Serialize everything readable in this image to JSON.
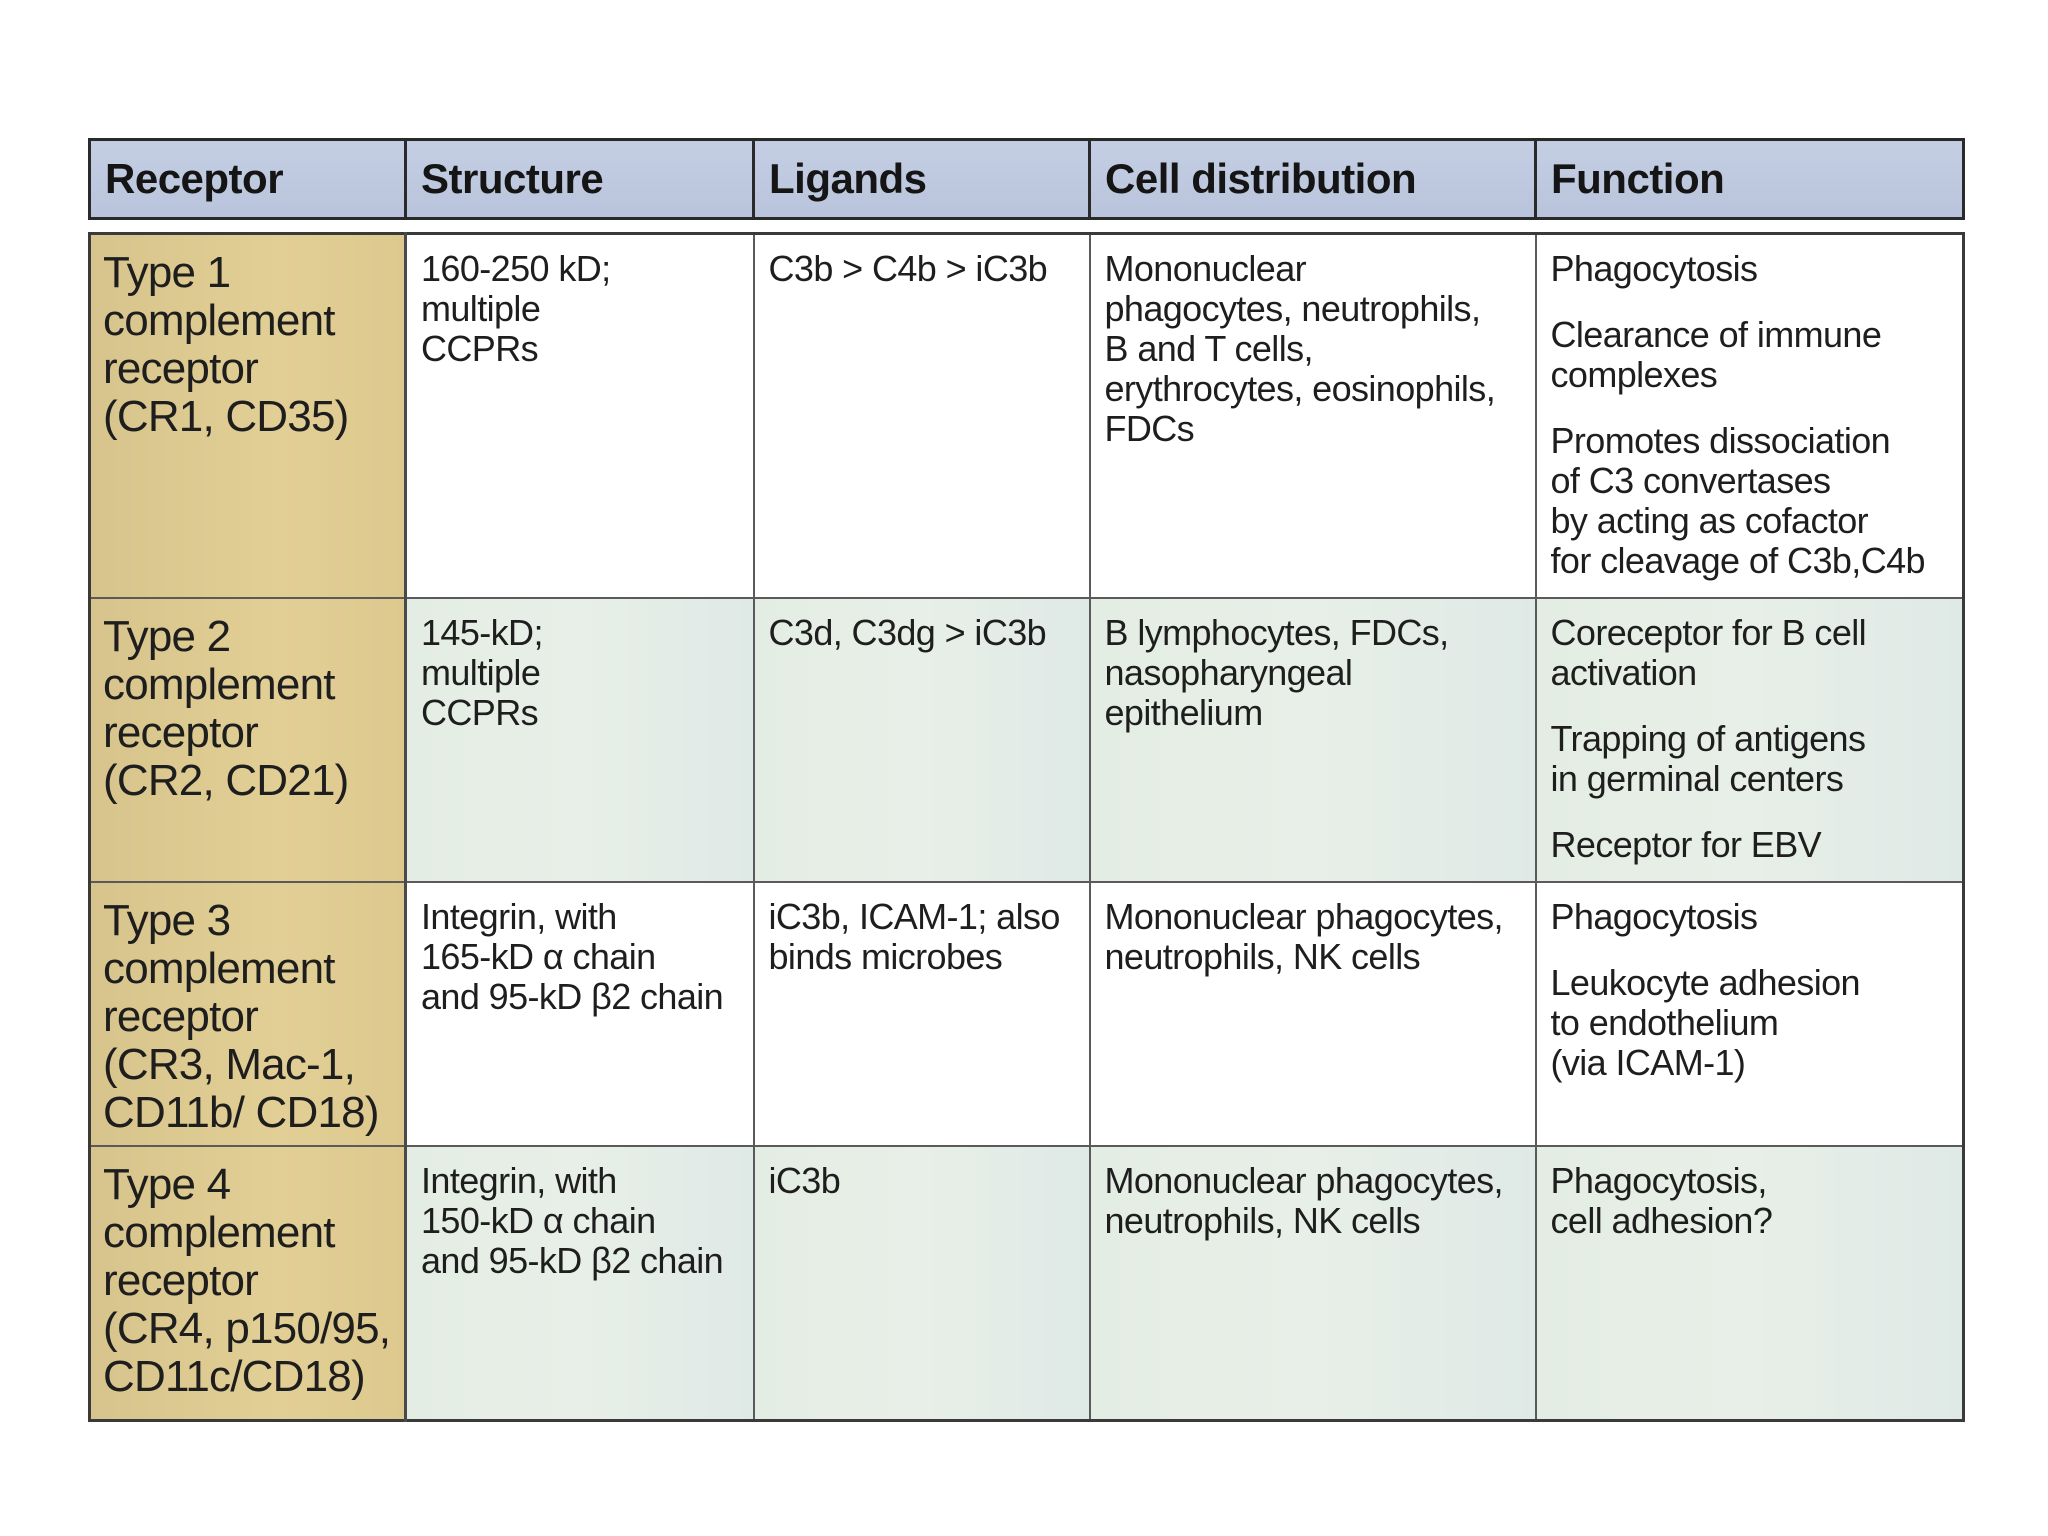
{
  "headers": [
    "Receptor",
    "Structure",
    "Ligands",
    "Cell distribution",
    "Function"
  ],
  "rows": [
    {
      "receptor": [
        "Type 1",
        "complement",
        "receptor",
        "(CR1, CD35)"
      ],
      "structure": [
        "160-250 kD;",
        "multiple",
        "CCPRs"
      ],
      "ligands": [
        "C3b > C4b > iC3b"
      ],
      "distribution": [
        "Mononuclear",
        "phagocytes, neutrophils,",
        "B and T cells,",
        "erythrocytes, eosinophils,",
        "FDCs"
      ],
      "function": [
        [
          "Phagocytosis"
        ],
        [
          "Clearance of immune",
          "complexes"
        ],
        [
          "Promotes dissociation",
          "of C3 convertases",
          "by acting as cofactor",
          "for cleavage of C3b,C4b"
        ]
      ]
    },
    {
      "receptor": [
        "Type 2",
        "complement",
        "receptor",
        "(CR2, CD21)"
      ],
      "structure": [
        "145-kD;",
        "multiple",
        "CCPRs"
      ],
      "ligands": [
        "C3d, C3dg > iC3b"
      ],
      "distribution": [
        "B lymphocytes, FDCs,",
        "nasopharyngeal",
        "epithelium"
      ],
      "function": [
        [
          "Coreceptor for B cell",
          "activation"
        ],
        [
          "Trapping of antigens",
          "in germinal centers"
        ],
        [
          "Receptor for EBV"
        ]
      ]
    },
    {
      "receptor": [
        "Type 3",
        "complement",
        "receptor",
        "(CR3, Mac-1,",
        "CD11b/ CD18)"
      ],
      "structure": [
        "Integrin, with",
        "165-kD α chain",
        "and 95-kD β2 chain"
      ],
      "ligands": [
        "iC3b, ICAM-1; also",
        "binds microbes"
      ],
      "distribution": [
        "Mononuclear phagocytes,",
        "neutrophils, NK cells"
      ],
      "function": [
        [
          "Phagocytosis"
        ],
        [
          "Leukocyte adhesion",
          "to endothelium",
          "(via ICAM-1)"
        ]
      ]
    },
    {
      "receptor": [
        "Type 4",
        "complement",
        "receptor",
        "(CR4, p150/95,",
        "CD11c/CD18)"
      ],
      "structure": [
        "Integrin, with",
        "150-kD α chain",
        "and 95-kD β2 chain"
      ],
      "ligands": [
        "iC3b"
      ],
      "distribution": [
        "Mononuclear phagocytes,",
        "neutrophils, NK cells"
      ],
      "function": [
        [
          "Phagocytosis,",
          "cell adhesion?"
        ]
      ]
    }
  ]
}
